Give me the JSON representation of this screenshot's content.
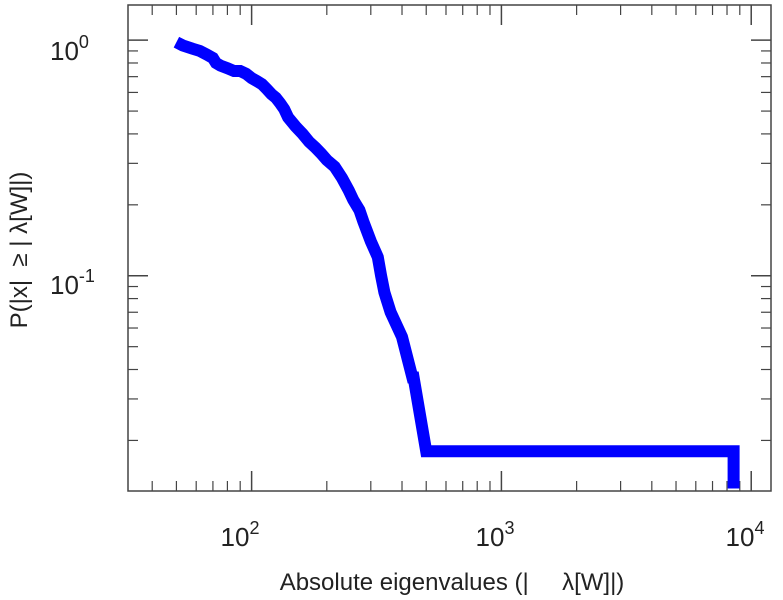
{
  "chart_data": {
    "type": "line",
    "title": "",
    "xlabel": "Absolute eigenvalues (|     λ[W]|)",
    "ylabel": "P(|x|  ≥ | λ[W]|)",
    "x_scale": "log",
    "y_scale": "log",
    "xlim": [
      32,
      12000
    ],
    "ylim": [
      0.0122,
      1.41
    ],
    "grid": false,
    "legend": "none",
    "line_color": "#0000ff",
    "x_ticks": [
      {
        "value": 100,
        "base": "10",
        "exp": "2"
      },
      {
        "value": 1000,
        "base": "10",
        "exp": "3"
      },
      {
        "value": 10000,
        "base": "10",
        "exp": "4"
      }
    ],
    "y_ticks": [
      {
        "value": 1,
        "base": "10",
        "exp": "0"
      },
      {
        "value": 0.1,
        "base": "10",
        "exp": "-1"
      }
    ],
    "series": [
      {
        "x": [
          50,
          53,
          58,
          62,
          66,
          70,
          72,
          75,
          80,
          85,
          90,
          95,
          100,
          105,
          110,
          115,
          120,
          125,
          130,
          135,
          140,
          150,
          160,
          170,
          180,
          190,
          200,
          215,
          230,
          245,
          255,
          270,
          280,
          300,
          320,
          330,
          340,
          360,
          400,
          440,
          445,
          500,
          510,
          8500,
          8500
        ],
        "y": [
          0.98,
          0.95,
          0.92,
          0.9,
          0.87,
          0.84,
          0.8,
          0.78,
          0.76,
          0.74,
          0.74,
          0.72,
          0.69,
          0.67,
          0.65,
          0.62,
          0.59,
          0.57,
          0.54,
          0.51,
          0.47,
          0.43,
          0.4,
          0.37,
          0.35,
          0.33,
          0.31,
          0.29,
          0.26,
          0.23,
          0.21,
          0.19,
          0.17,
          0.14,
          0.12,
          0.1,
          0.085,
          0.07,
          0.055,
          0.037,
          0.037,
          0.018,
          0.018,
          0.018,
          0.0125
        ]
      }
    ]
  }
}
